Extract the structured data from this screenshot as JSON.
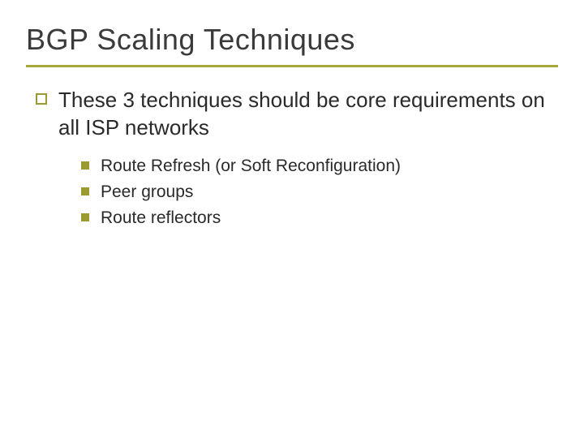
{
  "colors": {
    "accent": "#9a9a2e",
    "title_underline": "#a8a83a",
    "text_dark": "#2a2a2a",
    "title_text": "#3a3a3a",
    "background": "#ffffff"
  },
  "dimensions": {
    "underline_width": 3
  },
  "slide": {
    "title": "BGP Scaling Techniques",
    "main_point": "These 3 techniques should be core requirements on all ISP networks",
    "sub_items": [
      "Route Refresh (or Soft Reconfiguration)",
      "Peer groups",
      "Route reflectors"
    ]
  }
}
